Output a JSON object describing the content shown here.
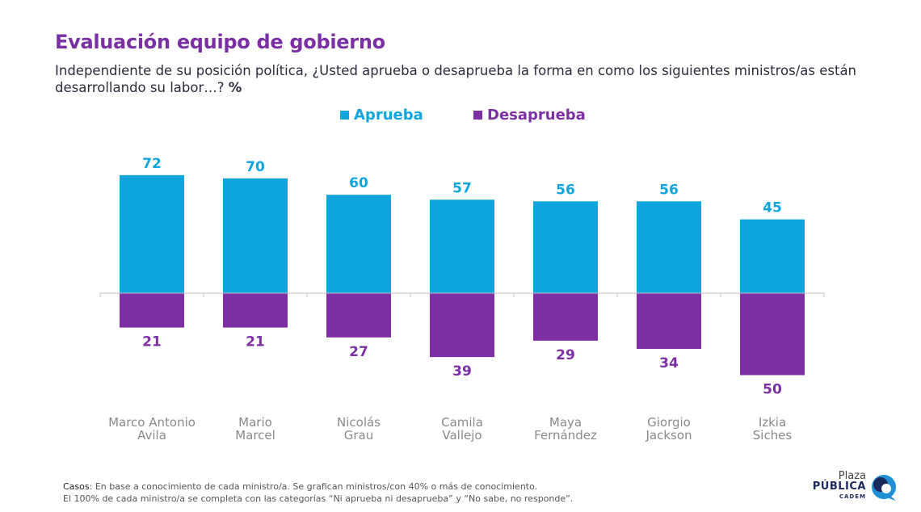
{
  "title": "Evaluación equipo de gobierno",
  "subtitle": "Independiente de su posición política, ¿Usted aprueba o desaprueba la forma en como los siguientes ministros/as están desarrollando su labor…?",
  "unit": "%",
  "colors": {
    "title": "#7b2fa4",
    "aprueba": "#0ea5dd",
    "desaprueba": "#7d2fa5"
  },
  "footnote": {
    "label": "Casos",
    "line1": ": En base a conocimiento de cada ministro/a. Se grafican ministros/con 40% o más de conocimiento.",
    "line2": "El 100% de cada ministro/a se completa con las categorías “Ni aprueba ni desaprueba” y “No sabe, no responde”."
  },
  "logo": {
    "top": "Plaza",
    "main": "PÚBLICA",
    "sub": "CADEM"
  },
  "chart_data": {
    "type": "bar",
    "legend_position": "top-center",
    "categories": [
      [
        "Marco Antonio",
        "Avila"
      ],
      [
        "Mario",
        "Marcel"
      ],
      [
        "Nicolás",
        "Grau"
      ],
      [
        "Camila",
        "Vallejo"
      ],
      [
        "Maya",
        "Fernández"
      ],
      [
        "Giorgio",
        "Jackson"
      ],
      [
        "Izkia",
        "Siches"
      ]
    ],
    "series": [
      {
        "name": "Aprueba",
        "color": "#0ea5dd",
        "values": [
          72,
          70,
          60,
          57,
          56,
          56,
          45
        ]
      },
      {
        "name": "Desaprueba",
        "color": "#7d2fa5",
        "values": [
          21,
          21,
          27,
          39,
          29,
          34,
          50
        ]
      }
    ],
    "grid": false
  }
}
